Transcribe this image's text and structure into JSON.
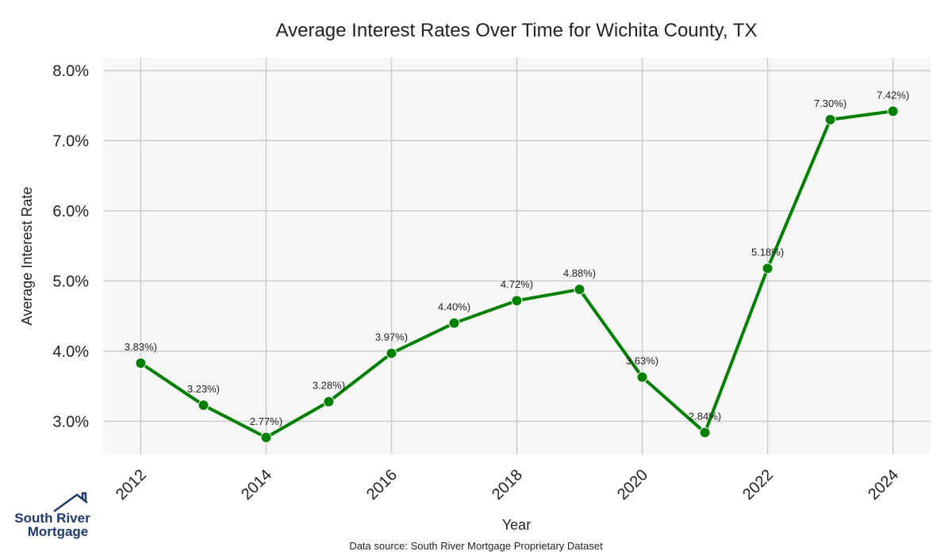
{
  "chart_data": {
    "type": "line",
    "title": "Average Interest Rates Over Time for Wichita County, TX",
    "xlabel": "Year",
    "ylabel": "Average Interest Rate",
    "x": [
      2012,
      2013,
      2014,
      2015,
      2016,
      2017,
      2018,
      2019,
      2020,
      2021,
      2022,
      2023,
      2024
    ],
    "series": [
      {
        "values": [
          3.83,
          3.23,
          2.77,
          3.28,
          3.97,
          4.4,
          4.72,
          4.88,
          3.63,
          2.84,
          5.18,
          7.3,
          7.42
        ],
        "data_labels": [
          "3.83%)",
          "3.23%)",
          "2.77%)",
          "3.28%)",
          "3.97%)",
          "4.40%)",
          "4.72%)",
          "4.88%)",
          "3.63%)",
          "2.84%)",
          "5.18%)",
          "7.30%)",
          "7.42%)"
        ],
        "color": "#008000"
      }
    ],
    "x_ticks": [
      2012,
      2014,
      2016,
      2018,
      2020,
      2022,
      2024
    ],
    "x_tick_labels": [
      "2012",
      "2014",
      "2016",
      "2018",
      "2020",
      "2022",
      "2024"
    ],
    "y_ticks": [
      3.0,
      4.0,
      5.0,
      6.0,
      7.0,
      8.0
    ],
    "y_tick_labels": [
      "3.0%",
      "4.0%",
      "5.0%",
      "6.0%",
      "7.0%",
      "8.0%"
    ],
    "xlim": [
      2011.4,
      2024.6
    ],
    "ylim": [
      2.53,
      8.18
    ],
    "grid": true,
    "plot_background": "#f7f7f7",
    "grid_color": "#cccccc"
  },
  "footer": {
    "source": "Data source: South River Mortgage Proprietary Dataset"
  },
  "logo": {
    "line1": "South River",
    "line2": "Mortgage",
    "color": "#1f3a6e",
    "icon": "house-roof-icon"
  }
}
